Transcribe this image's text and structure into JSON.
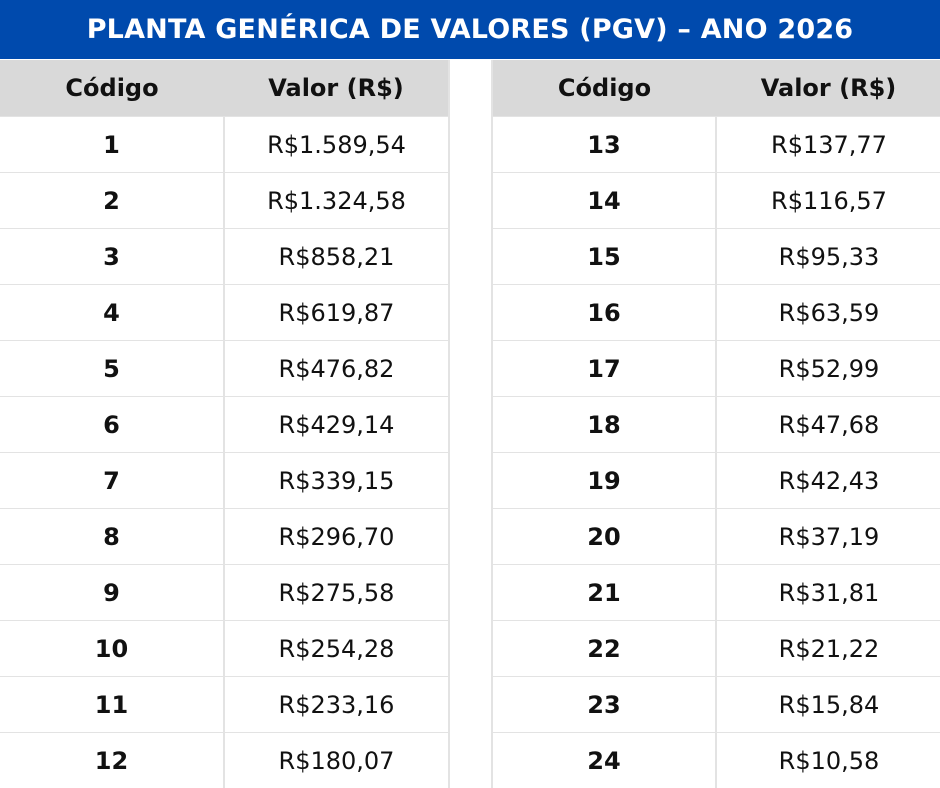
{
  "title": "PLANTA GENÉRICA DE VALORES (PGV) – ANO 2026",
  "colors": {
    "title_bg": "#004AAD",
    "header_bg": "#D9D9D9",
    "grid": "#E3E3E3"
  },
  "columns": {
    "code": "Código",
    "value": "Valor (R$)"
  },
  "left_table": [
    {
      "code": "1",
      "value": "R$1.589,54"
    },
    {
      "code": "2",
      "value": "R$1.324,58"
    },
    {
      "code": "3",
      "value": "R$858,21"
    },
    {
      "code": "4",
      "value": "R$619,87"
    },
    {
      "code": "5",
      "value": "R$476,82"
    },
    {
      "code": "6",
      "value": "R$429,14"
    },
    {
      "code": "7",
      "value": "R$339,15"
    },
    {
      "code": "8",
      "value": "R$296,70"
    },
    {
      "code": "9",
      "value": "R$275,58"
    },
    {
      "code": "10",
      "value": "R$254,28"
    },
    {
      "code": "11",
      "value": "R$233,16"
    },
    {
      "code": "12",
      "value": "R$180,07"
    }
  ],
  "right_table": [
    {
      "code": "13",
      "value": "R$137,77"
    },
    {
      "code": "14",
      "value": "R$116,57"
    },
    {
      "code": "15",
      "value": "R$95,33"
    },
    {
      "code": "16",
      "value": "R$63,59"
    },
    {
      "code": "17",
      "value": "R$52,99"
    },
    {
      "code": "18",
      "value": "R$47,68"
    },
    {
      "code": "19",
      "value": "R$42,43"
    },
    {
      "code": "20",
      "value": "R$37,19"
    },
    {
      "code": "21",
      "value": "R$31,81"
    },
    {
      "code": "22",
      "value": "R$21,22"
    },
    {
      "code": "23",
      "value": "R$15,84"
    },
    {
      "code": "24",
      "value": "R$10,58"
    }
  ]
}
